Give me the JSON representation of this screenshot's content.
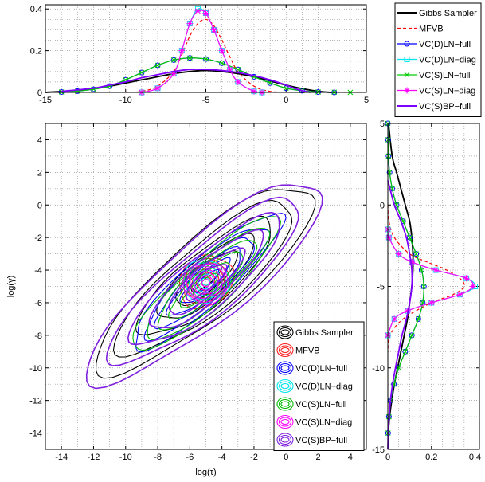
{
  "chart_data": [
    {
      "id": "top",
      "type": "line",
      "xlim": [
        -15,
        5
      ],
      "ylim": [
        0,
        0.42
      ],
      "xticks": [
        "-15",
        "-10",
        "-5",
        "0",
        "5"
      ],
      "yticks": [
        "0",
        "0.2",
        "0.4"
      ],
      "grid": true,
      "xlabel": "",
      "ylabel": "",
      "series": [
        {
          "name": "Gibbs Sampler",
          "color": "#000000",
          "style": "solid",
          "marker": "none",
          "x": [
            -15,
            -13,
            -11,
            -10,
            -9,
            -8,
            -7,
            -6,
            -5,
            -4,
            -3,
            -2,
            -1,
            0,
            1,
            2,
            2.8
          ],
          "y": [
            0,
            0.01,
            0.03,
            0.045,
            0.06,
            0.075,
            0.09,
            0.1,
            0.105,
            0.1,
            0.09,
            0.075,
            0.055,
            0.035,
            0.018,
            0.005,
            0
          ]
        },
        {
          "name": "MFVB",
          "color": "#ff0000",
          "style": "dashed",
          "marker": "none",
          "x": [
            -10,
            -9,
            -8,
            -7,
            -6.5,
            -6,
            -5.5,
            -5,
            -4.5,
            -4,
            -3.5,
            -3,
            -2,
            -1,
            0
          ],
          "y": [
            0,
            0.005,
            0.03,
            0.1,
            0.18,
            0.27,
            0.33,
            0.35,
            0.32,
            0.25,
            0.17,
            0.1,
            0.03,
            0.005,
            0
          ]
        },
        {
          "name": "VC(D)LN−full",
          "color": "#0000ff",
          "style": "solid",
          "marker": "circle",
          "x": [
            -14,
            -13,
            -12,
            -11,
            -10,
            -9,
            -8,
            -7,
            -6,
            -5,
            -4,
            -3,
            -2,
            -1,
            0,
            1,
            2,
            3
          ],
          "y": [
            0.002,
            0.006,
            0.015,
            0.03,
            0.06,
            0.095,
            0.13,
            0.155,
            0.165,
            0.16,
            0.14,
            0.11,
            0.075,
            0.045,
            0.02,
            0.008,
            0.002,
            0
          ]
        },
        {
          "name": "VC(D)LN−diag",
          "color": "#00e5ee",
          "style": "solid",
          "marker": "square",
          "x": [
            -9,
            -8,
            -7,
            -6.5,
            -6,
            -5.5,
            -5,
            -4.5,
            -4,
            -3.5,
            -3,
            -2,
            -1.5
          ],
          "y": [
            0,
            0.02,
            0.09,
            0.2,
            0.33,
            0.4,
            0.38,
            0.3,
            0.2,
            0.11,
            0.05,
            0.005,
            0
          ]
        },
        {
          "name": "VC(S)LN−full",
          "color": "#00cc00",
          "style": "solid",
          "marker": "x",
          "x": [
            -14,
            -13,
            -12,
            -11,
            -10,
            -9,
            -8,
            -7,
            -6,
            -5,
            -4,
            -3,
            -2,
            -1,
            0,
            1,
            2,
            3,
            4
          ],
          "y": [
            0.002,
            0.006,
            0.015,
            0.03,
            0.06,
            0.095,
            0.13,
            0.155,
            0.165,
            0.16,
            0.14,
            0.11,
            0.075,
            0.045,
            0.02,
            0.008,
            0.002,
            0.001,
            0
          ]
        },
        {
          "name": "VC(S)LN−diag",
          "color": "#ff00ff",
          "style": "solid",
          "marker": "star",
          "x": [
            -9,
            -8,
            -7,
            -6.5,
            -6,
            -5.5,
            -5,
            -4.5,
            -4,
            -3.5,
            -3,
            -2,
            -1.5
          ],
          "y": [
            0,
            0.02,
            0.09,
            0.2,
            0.33,
            0.39,
            0.38,
            0.3,
            0.2,
            0.11,
            0.05,
            0.005,
            0
          ]
        },
        {
          "name": "VC(S)BP−full",
          "color": "#7f00ff",
          "style": "solid",
          "marker": "none",
          "x": [
            -14,
            -12,
            -11,
            -10,
            -9,
            -8,
            -7,
            -6,
            -5,
            -4,
            -3,
            -2,
            -1,
            0,
            0.5,
            1,
            1.5
          ],
          "y": [
            0.005,
            0.02,
            0.035,
            0.05,
            0.07,
            0.085,
            0.1,
            0.11,
            0.11,
            0.105,
            0.095,
            0.08,
            0.06,
            0.035,
            0.02,
            0.008,
            0
          ]
        }
      ]
    },
    {
      "id": "main",
      "type": "contour",
      "xlim": [
        -15,
        5
      ],
      "ylim": [
        -15,
        5
      ],
      "xticks": [
        "-14",
        "-12",
        "-10",
        "-8",
        "-6",
        "-4",
        "-2",
        "0",
        "2",
        "4"
      ],
      "yticks": [
        "-14",
        "-12",
        "-10",
        "-8",
        "-6",
        "-4",
        "-2",
        "0",
        "2",
        "4"
      ],
      "xlabel": "log(τ)",
      "ylabel": "log(γ)",
      "grid": true,
      "legend_position": "bottom-right",
      "series": [
        {
          "name": "Gibbs Sampler",
          "color": "#000000",
          "cx": -5.0,
          "cy": -4.5,
          "angle": 40,
          "a": [
            1.2,
            2.4,
            3.8,
            5.3,
            7.0,
            8.6
          ],
          "b": [
            0.4,
            0.8,
            1.2,
            1.6,
            2.0,
            2.4
          ]
        },
        {
          "name": "MFVB",
          "color": "#ff2020",
          "cx": -5.0,
          "cy": -4.7,
          "angle": 40,
          "a": [
            0.3,
            0.6,
            0.9,
            1.2,
            1.5,
            1.8
          ],
          "b": [
            0.25,
            0.5,
            0.75,
            1.0,
            1.25,
            1.5
          ]
        },
        {
          "name": "VC(D)LN−full",
          "color": "#0000ff",
          "cx": -5.0,
          "cy": -4.7,
          "angle": 42,
          "a": [
            1.0,
            2.0,
            3.0,
            4.0,
            5.0,
            6.1
          ],
          "b": [
            0.3,
            0.55,
            0.8,
            1.0,
            1.2,
            1.4
          ]
        },
        {
          "name": "VC(D)LN−diag",
          "color": "#00e5ee",
          "cx": -5.0,
          "cy": -4.7,
          "angle": 0,
          "a": [
            0.25,
            0.5,
            0.75,
            1.0,
            1.25,
            1.45
          ],
          "b": [
            0.22,
            0.45,
            0.68,
            0.9,
            1.1,
            1.3
          ]
        },
        {
          "name": "VC(S)LN−full",
          "color": "#00bb00",
          "cx": -5.0,
          "cy": -4.9,
          "angle": 42,
          "a": [
            1.0,
            2.0,
            3.0,
            4.0,
            5.0,
            6.0
          ],
          "b": [
            0.3,
            0.55,
            0.8,
            1.05,
            1.25,
            1.45
          ]
        },
        {
          "name": "VC(S)LN−diag",
          "color": "#ff00ff",
          "cx": -5.0,
          "cy": -4.8,
          "angle": 0,
          "a": [
            0.25,
            0.5,
            0.75,
            1.0,
            1.2,
            1.4
          ],
          "b": [
            0.22,
            0.45,
            0.68,
            0.9,
            1.1,
            1.25
          ]
        },
        {
          "name": "VC(S)BP−full",
          "color": "#7f1fdf",
          "cx": -5.0,
          "cy": -4.7,
          "angle": 40,
          "a": [
            1.6,
            3.0,
            4.5,
            6.0,
            7.6,
            9.3
          ],
          "b": [
            0.5,
            0.85,
            1.2,
            1.6,
            2.0,
            2.5
          ]
        }
      ]
    },
    {
      "id": "right",
      "type": "line",
      "orientation": "horizontal",
      "xlim": [
        0,
        0.42
      ],
      "ylim": [
        -15,
        5
      ],
      "xticks": [
        "0",
        "0.2",
        "0.4"
      ],
      "yticks": [
        "-15",
        "-10",
        "-5",
        "0",
        "5"
      ],
      "grid": true,
      "xlabel": "",
      "ylabel": "",
      "series": [
        {
          "name": "Gibbs Sampler",
          "color": "#000000",
          "style": "solid",
          "marker": "none",
          "y": [
            5,
            3,
            2,
            1,
            0,
            -1,
            -2,
            -3,
            -4,
            -5,
            -6,
            -7,
            -8,
            -9,
            -10,
            -11,
            -12,
            -13,
            -14
          ],
          "x": [
            0.003,
            0.02,
            0.04,
            0.06,
            0.08,
            0.1,
            0.11,
            0.115,
            0.115,
            0.11,
            0.1,
            0.09,
            0.075,
            0.06,
            0.045,
            0.03,
            0.018,
            0.008,
            0.002
          ]
        },
        {
          "name": "MFVB",
          "color": "#ff0000",
          "style": "dashed",
          "marker": "none",
          "y": [
            0,
            -1,
            -2,
            -3,
            -3.5,
            -4,
            -4.5,
            -5,
            -5.5,
            -6,
            -7,
            -8,
            -9
          ],
          "x": [
            0,
            0.005,
            0.03,
            0.1,
            0.18,
            0.27,
            0.33,
            0.35,
            0.3,
            0.2,
            0.07,
            0.01,
            0
          ]
        },
        {
          "name": "VC(D)LN−full",
          "color": "#0000ff",
          "style": "solid",
          "marker": "circle",
          "y": [
            5,
            4,
            3,
            2,
            1,
            0,
            -1,
            -2,
            -3,
            -4,
            -5,
            -6,
            -7,
            -8,
            -9,
            -10,
            -11,
            -12,
            -13,
            -14
          ],
          "x": [
            0,
            0.001,
            0.003,
            0.008,
            0.02,
            0.04,
            0.07,
            0.1,
            0.13,
            0.155,
            0.165,
            0.16,
            0.14,
            0.11,
            0.08,
            0.05,
            0.028,
            0.013,
            0.005,
            0.001
          ]
        },
        {
          "name": "VC(D)LN−diag",
          "color": "#00e5ee",
          "style": "solid",
          "marker": "square",
          "y": [
            -1.5,
            -2,
            -3,
            -3.5,
            -4,
            -4.5,
            -5,
            -5.5,
            -6,
            -6.5,
            -7,
            -8
          ],
          "x": [
            0,
            0.005,
            0.05,
            0.11,
            0.22,
            0.36,
            0.4,
            0.33,
            0.2,
            0.09,
            0.03,
            0
          ]
        },
        {
          "name": "VC(S)LN−full",
          "color": "#00cc00",
          "style": "solid",
          "marker": "x",
          "y": [
            5,
            4,
            3,
            2,
            1,
            0,
            -1,
            -2,
            -3,
            -4,
            -5,
            -6,
            -7,
            -8,
            -9,
            -10,
            -11,
            -12,
            -13,
            -14
          ],
          "x": [
            0,
            0.001,
            0.003,
            0.008,
            0.02,
            0.04,
            0.07,
            0.1,
            0.13,
            0.155,
            0.165,
            0.16,
            0.14,
            0.11,
            0.08,
            0.05,
            0.028,
            0.013,
            0.005,
            0.001
          ]
        },
        {
          "name": "VC(S)LN−diag",
          "color": "#ff00ff",
          "style": "solid",
          "marker": "star",
          "y": [
            -1.5,
            -2,
            -3,
            -3.5,
            -4,
            -4.5,
            -5,
            -5.5,
            -6,
            -6.5,
            -7,
            -8
          ],
          "x": [
            0,
            0.005,
            0.05,
            0.11,
            0.22,
            0.36,
            0.39,
            0.33,
            0.2,
            0.09,
            0.03,
            0
          ]
        },
        {
          "name": "VC(S)BP−full",
          "color": "#7f00ff",
          "style": "solid",
          "marker": "none",
          "y": [
            1.5,
            1,
            0,
            -1,
            -2,
            -3,
            -4,
            -5,
            -6,
            -7,
            -8,
            -9,
            -10,
            -11,
            -12,
            -13,
            -14,
            -15
          ],
          "x": [
            0,
            0.01,
            0.03,
            0.06,
            0.085,
            0.1,
            0.11,
            0.11,
            0.1,
            0.085,
            0.065,
            0.05,
            0.035,
            0.022,
            0.012,
            0.006,
            0.002,
            0
          ]
        }
      ]
    }
  ],
  "legend_top_right": {
    "entries": [
      "Gibbs Sampler",
      "MFVB",
      "VC(D)LN−full",
      "VC(D)LN−diag",
      "VC(S)LN−full",
      "VC(S)LN−diag",
      "VC(S)BP−full"
    ]
  },
  "legend_main": {
    "entries": [
      "Gibbs Sampler",
      "MFVB",
      "VC(D)LN−full",
      "VC(D)LN−diag",
      "VC(S)LN−full",
      "VC(S)LN−diag",
      "VC(S)BP−full"
    ]
  }
}
